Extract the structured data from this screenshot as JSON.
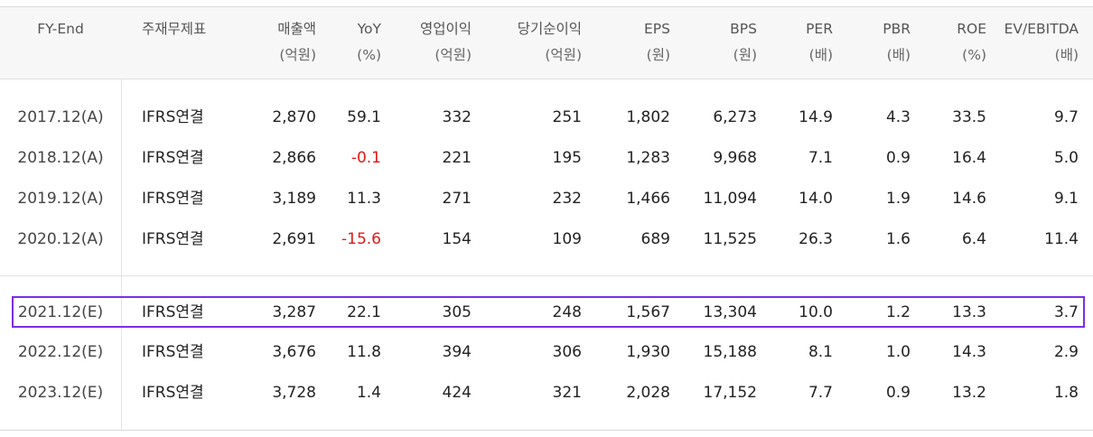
{
  "columns": [
    {
      "label": "FY-End",
      "unit": ""
    },
    {
      "label": "주재무제표",
      "unit": ""
    },
    {
      "label": "매출액",
      "unit": "(억원)"
    },
    {
      "label": "YoY",
      "unit": "(%)"
    },
    {
      "label": "영업이익",
      "unit": "(억원)"
    },
    {
      "label": "당기순이익",
      "unit": "(억원)"
    },
    {
      "label": "EPS",
      "unit": "(원)"
    },
    {
      "label": "BPS",
      "unit": "(원)"
    },
    {
      "label": "PER",
      "unit": "(배)"
    },
    {
      "label": "PBR",
      "unit": "(배)"
    },
    {
      "label": "ROE",
      "unit": "(%)"
    },
    {
      "label": "EV/EBITDA",
      "unit": "(배)"
    }
  ],
  "rows": [
    [
      "2017.12(A)",
      "IFRS연결",
      "2,870",
      "59.1",
      "332",
      "251",
      "1,802",
      "6,273",
      "14.9",
      "4.3",
      "33.5",
      "9.7"
    ],
    [
      "2018.12(A)",
      "IFRS연결",
      "2,866",
      "-0.1",
      "221",
      "195",
      "1,283",
      "9,968",
      "7.1",
      "0.9",
      "16.4",
      "5.0"
    ],
    [
      "2019.12(A)",
      "IFRS연결",
      "3,189",
      "11.3",
      "271",
      "232",
      "1,466",
      "11,094",
      "14.0",
      "1.9",
      "14.6",
      "9.1"
    ],
    [
      "2020.12(A)",
      "IFRS연결",
      "2,691",
      "-15.6",
      "154",
      "109",
      "689",
      "11,525",
      "26.3",
      "1.6",
      "6.4",
      "11.4"
    ],
    [
      "2021.12(E)",
      "IFRS연결",
      "3,287",
      "22.1",
      "305",
      "248",
      "1,567",
      "13,304",
      "10.0",
      "1.2",
      "13.3",
      "3.7"
    ],
    [
      "2022.12(E)",
      "IFRS연결",
      "3,676",
      "11.8",
      "394",
      "306",
      "1,930",
      "15,188",
      "8.1",
      "1.0",
      "14.3",
      "2.9"
    ],
    [
      "2023.12(E)",
      "IFRS연결",
      "3,728",
      "1.4",
      "424",
      "321",
      "2,028",
      "17,152",
      "7.7",
      "0.9",
      "13.2",
      "1.8"
    ]
  ],
  "negative_color": "#e01818",
  "highlight_color": "#7a2ee8",
  "highlighted_row": "2021.12(E)"
}
